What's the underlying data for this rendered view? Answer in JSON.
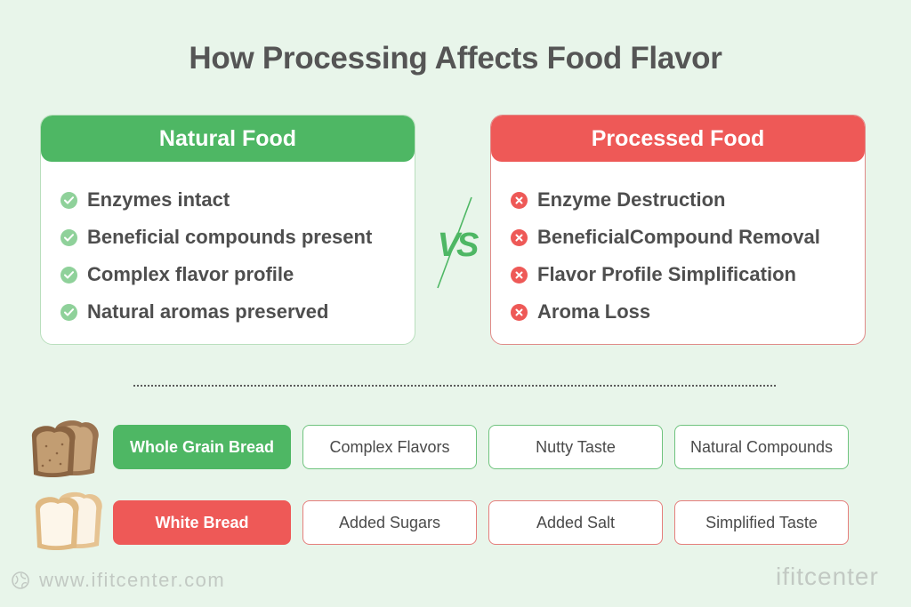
{
  "title": "How Processing Affects Food Flavor",
  "natural": {
    "header": "Natural Food",
    "icon": "check-circle-icon",
    "items": [
      "Enzymes intact",
      "Beneficial compounds present",
      "Complex flavor profile",
      "Natural aromas preserved"
    ]
  },
  "processed": {
    "header": "Processed Food",
    "icon": "cross-circle-icon",
    "items": [
      "Enzyme Destruction",
      "BeneficialCompound Removal",
      "Flavor Profile Simplification",
      "Aroma Loss"
    ]
  },
  "vs_label": "VS",
  "rows": [
    {
      "label": "Whole Grain Bread",
      "image": "whole-grain-bread-slices",
      "traits": [
        "Complex Flavors",
        "Nutty Taste",
        "Natural Compounds"
      ]
    },
    {
      "label": "White Bread",
      "image": "white-bread-slices",
      "traits": [
        "Added Sugars",
        "Added Salt",
        "Simplified Taste"
      ]
    }
  ],
  "footer": {
    "url": "www.ifitcenter.com",
    "logo": "ifitcenter"
  },
  "colors": {
    "background": "#e8f5ea",
    "green": "#4eb764",
    "red": "#ee5957",
    "title": "#555555"
  }
}
